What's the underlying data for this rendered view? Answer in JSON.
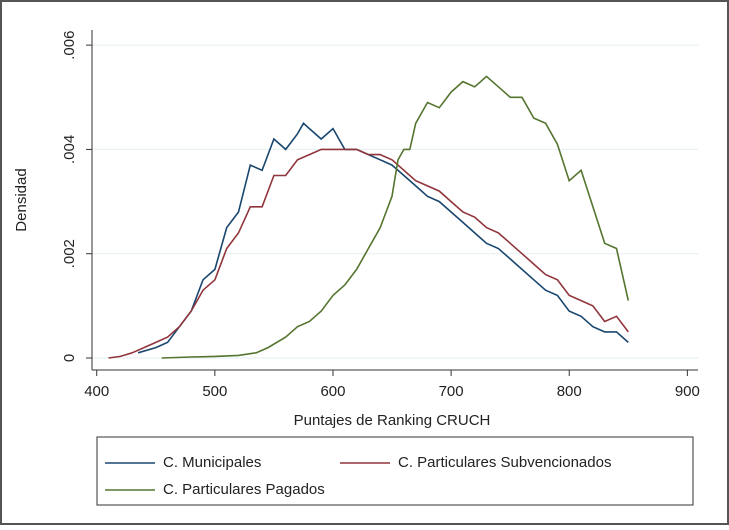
{
  "chart_data": {
    "type": "line",
    "xlabel": "Puntajes de Ranking CRUCH",
    "ylabel": "Densidad",
    "xlim": [
      396,
      909
    ],
    "ylim": [
      -0.00023,
      0.00629
    ],
    "xticks": [
      400,
      500,
      600,
      700,
      800,
      900
    ],
    "yticks": [
      0,
      {
        "value": 0.002,
        "label": ".002"
      },
      {
        "value": 0.004,
        "label": ".004"
      },
      {
        "value": 0.006,
        "label": ".006"
      }
    ],
    "grid": true,
    "legend": "bottom",
    "series": [
      {
        "name": "C. Municipales",
        "color": "#1a476f",
        "x": [
          435,
          450,
          460,
          470,
          480,
          490,
          500,
          510,
          520,
          530,
          540,
          550,
          560,
          570,
          575,
          580,
          590,
          600,
          610,
          620,
          630,
          640,
          650,
          660,
          670,
          680,
          690,
          700,
          710,
          720,
          730,
          740,
          750,
          760,
          770,
          780,
          790,
          800,
          810,
          820,
          830,
          840,
          850
        ],
        "values": [
          0.0001,
          0.0002,
          0.0003,
          0.0006,
          0.0009,
          0.0015,
          0.0017,
          0.0025,
          0.0028,
          0.0037,
          0.0036,
          0.0042,
          0.004,
          0.0043,
          0.0045,
          0.0044,
          0.0042,
          0.0044,
          0.004,
          0.004,
          0.0039,
          0.0038,
          0.0037,
          0.0035,
          0.0033,
          0.0031,
          0.003,
          0.0028,
          0.0026,
          0.0024,
          0.0022,
          0.0021,
          0.0019,
          0.0017,
          0.0015,
          0.0013,
          0.0012,
          0.0009,
          0.0008,
          0.0006,
          0.0005,
          0.0005,
          0.0003
        ]
      },
      {
        "name": "C. Particulares Subvencionados",
        "color": "#90353b",
        "x": [
          410,
          420,
          430,
          440,
          450,
          460,
          470,
          480,
          490,
          500,
          510,
          520,
          530,
          540,
          550,
          560,
          570,
          580,
          590,
          600,
          610,
          620,
          630,
          640,
          650,
          660,
          670,
          680,
          690,
          700,
          710,
          720,
          730,
          740,
          750,
          760,
          770,
          780,
          790,
          800,
          810,
          820,
          830,
          840,
          850
        ],
        "values": [
          0,
          3e-05,
          0.0001,
          0.0002,
          0.0003,
          0.0004,
          0.0006,
          0.0009,
          0.0013,
          0.0015,
          0.0021,
          0.0024,
          0.0029,
          0.0029,
          0.0035,
          0.0035,
          0.0038,
          0.0039,
          0.004,
          0.004,
          0.004,
          0.004,
          0.0039,
          0.0039,
          0.0038,
          0.0036,
          0.0034,
          0.0033,
          0.0032,
          0.003,
          0.0028,
          0.0027,
          0.0025,
          0.0024,
          0.0022,
          0.002,
          0.0018,
          0.0016,
          0.0015,
          0.0012,
          0.0011,
          0.001,
          0.0007,
          0.0008,
          0.0005
        ]
      },
      {
        "name": "C. Particulares Pagados",
        "color": "#55752f",
        "x": [
          455,
          480,
          500,
          520,
          535,
          545,
          560,
          570,
          580,
          590,
          600,
          610,
          620,
          630,
          640,
          650,
          655,
          660,
          665,
          670,
          680,
          690,
          700,
          710,
          720,
          730,
          740,
          750,
          760,
          770,
          780,
          790,
          800,
          810,
          820,
          830,
          840,
          850
        ],
        "values": [
          0,
          2e-05,
          3e-05,
          5e-05,
          0.0001,
          0.0002,
          0.0004,
          0.0006,
          0.0007,
          0.0009,
          0.0012,
          0.0014,
          0.0017,
          0.0021,
          0.0025,
          0.0031,
          0.0038,
          0.004,
          0.004,
          0.0045,
          0.0049,
          0.0048,
          0.0051,
          0.0053,
          0.0052,
          0.0054,
          0.0052,
          0.005,
          0.005,
          0.0046,
          0.0045,
          0.0041,
          0.0034,
          0.0036,
          0.0029,
          0.0022,
          0.0021,
          0.0011
        ]
      }
    ]
  }
}
